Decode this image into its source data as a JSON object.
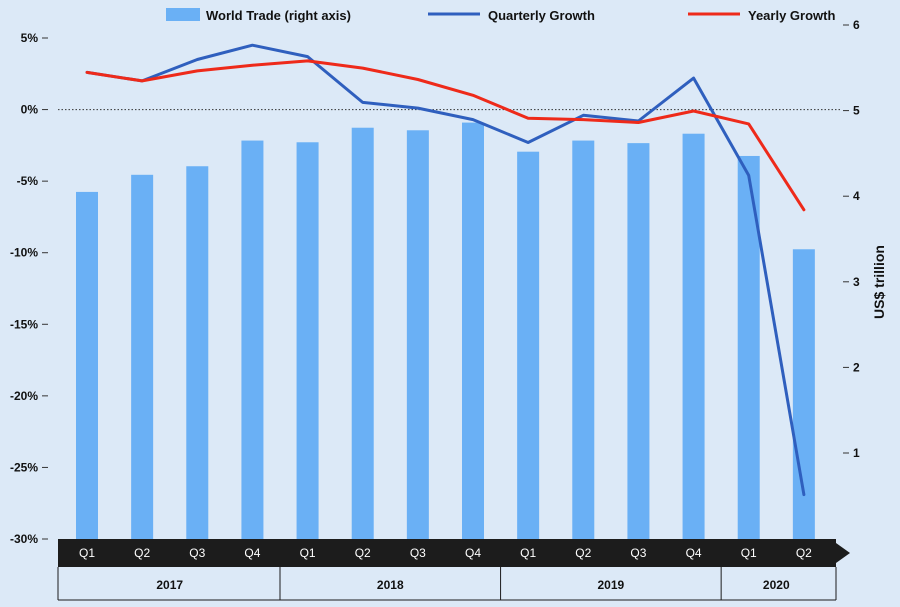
{
  "chart_data": {
    "type": "bar+line",
    "legend": {
      "placement": "top",
      "items": [
        {
          "label": "World Trade (right axis)",
          "kind": "bar",
          "color": "#6ab0f5"
        },
        {
          "label": "Quarterly Growth",
          "kind": "line",
          "color": "#2f5fbe"
        },
        {
          "label": "Yearly Growth",
          "kind": "line",
          "color": "#ee2a1a"
        }
      ]
    },
    "categories": [
      "Q1",
      "Q2",
      "Q3",
      "Q4",
      "Q1",
      "Q2",
      "Q3",
      "Q4",
      "Q1",
      "Q2",
      "Q3",
      "Q4",
      "Q1",
      "Q2"
    ],
    "years": [
      {
        "label": "2017",
        "quarters": 4
      },
      {
        "label": "2018",
        "quarters": 4
      },
      {
        "label": "2019",
        "quarters": 4
      },
      {
        "label": "2020",
        "quarters": 2
      }
    ],
    "left_axis": {
      "ylim": [
        -30,
        5
      ],
      "ticks": [
        5,
        0,
        -5,
        -10,
        -15,
        -20,
        -25,
        -30
      ],
      "tick_labels": [
        "5%",
        "0%",
        "-5%",
        "-10%",
        "-15%",
        "-20%",
        "-25%",
        "-30%"
      ],
      "zero_line": true
    },
    "right_axis": {
      "label": "US$ trillion",
      "ylim": [
        0,
        6
      ],
      "ticks": [
        6,
        5,
        4,
        3,
        2,
        1
      ],
      "tick_labels": [
        "6",
        "5",
        "4",
        "3",
        "2",
        "1"
      ]
    },
    "series": [
      {
        "name": "World Trade (right axis)",
        "type": "bar",
        "axis": "right",
        "color": "#6ab0f5",
        "values": [
          4.05,
          4.25,
          4.35,
          4.65,
          4.63,
          4.8,
          4.77,
          4.86,
          4.52,
          4.65,
          4.62,
          4.73,
          4.47,
          3.38
        ]
      },
      {
        "name": "Quarterly Growth",
        "type": "line",
        "axis": "left",
        "color": "#2f5fbe",
        "values": [
          2.6,
          2.0,
          3.5,
          4.5,
          3.7,
          0.5,
          0.1,
          -0.7,
          -2.3,
          -0.4,
          -0.8,
          2.2,
          -4.6,
          -26.9
        ]
      },
      {
        "name": "Yearly Growth",
        "type": "line",
        "axis": "left",
        "color": "#ee2a1a",
        "values": [
          2.6,
          2.0,
          2.7,
          3.1,
          3.4,
          2.9,
          2.1,
          1.0,
          -0.6,
          -0.7,
          -0.9,
          -0.1,
          -1.0,
          -7.0
        ]
      }
    ],
    "grid": false
  }
}
